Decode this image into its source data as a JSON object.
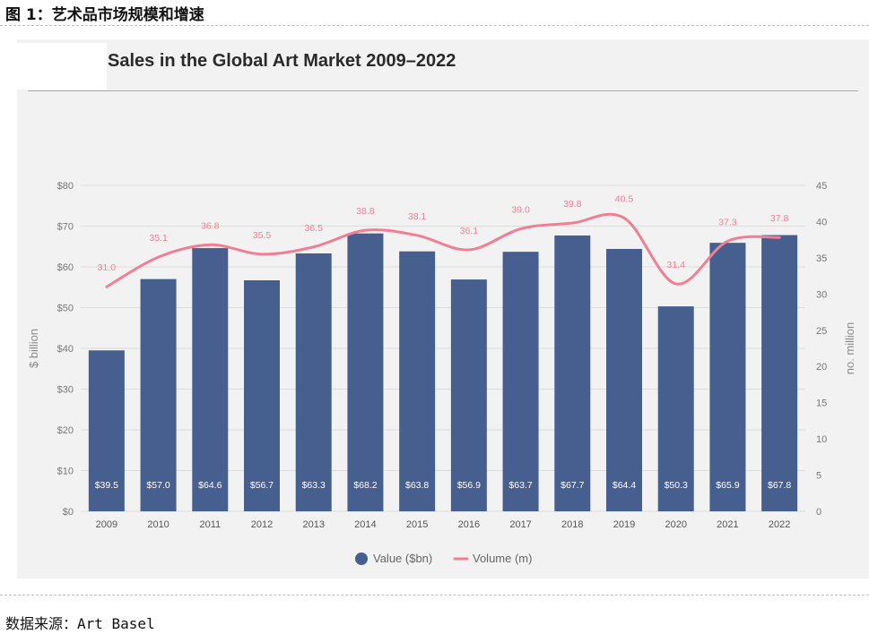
{
  "figure_caption": "图 1：艺术品市场规模和增速",
  "source_note": "数据来源：Art Basel",
  "colors": {
    "bar": "#475f8f",
    "line": "#f27e95",
    "title_rule": "#f08a9e",
    "panel": "#f2f2f2"
  },
  "chart_data": {
    "type": "bar",
    "title": "Sales in the Global Art Market 2009–2022",
    "categories": [
      "2009",
      "2010",
      "2011",
      "2012",
      "2013",
      "2014",
      "2015",
      "2016",
      "2017",
      "2018",
      "2019",
      "2020",
      "2021",
      "2022"
    ],
    "series": [
      {
        "name": "Value ($bn)",
        "type": "bar",
        "axis": "left",
        "values": [
          39.5,
          57.0,
          64.6,
          56.7,
          63.3,
          68.2,
          63.8,
          56.9,
          63.7,
          67.7,
          64.4,
          50.3,
          65.9,
          67.8
        ],
        "labels": [
          "$39.5",
          "$57.0",
          "$64.6",
          "$56.7",
          "$63.3",
          "$68.2",
          "$63.8",
          "$56.9",
          "$63.7",
          "$67.7",
          "$64.4",
          "$50.3",
          "$65.9",
          "$67.8"
        ]
      },
      {
        "name": "Volume (m)",
        "type": "line",
        "axis": "right",
        "values": [
          31.0,
          35.1,
          36.8,
          35.5,
          36.5,
          38.8,
          38.1,
          36.1,
          39.0,
          39.8,
          40.5,
          31.4,
          37.3,
          37.8
        ],
        "labels": [
          "31.0",
          "35.1",
          "36.8",
          "35.5",
          "36.5",
          "38.8",
          "38.1",
          "36.1",
          "39.0",
          "39.8",
          "40.5",
          "31.4",
          "37.3",
          "37.8"
        ]
      }
    ],
    "ylabel": "$ billion",
    "y2label": "no. million",
    "ylim": [
      0,
      80
    ],
    "y2lim": [
      0,
      45
    ],
    "yticks": [
      "$0",
      "$10",
      "$20",
      "$30",
      "$40",
      "$50",
      "$60",
      "$70",
      "$80"
    ],
    "y2ticks": [
      "0",
      "5",
      "10",
      "15",
      "20",
      "25",
      "30",
      "35",
      "40",
      "45"
    ],
    "legend": [
      "Value ($bn)",
      "Volume (m)"
    ],
    "legend_position": "bottom-center",
    "grid": true
  }
}
